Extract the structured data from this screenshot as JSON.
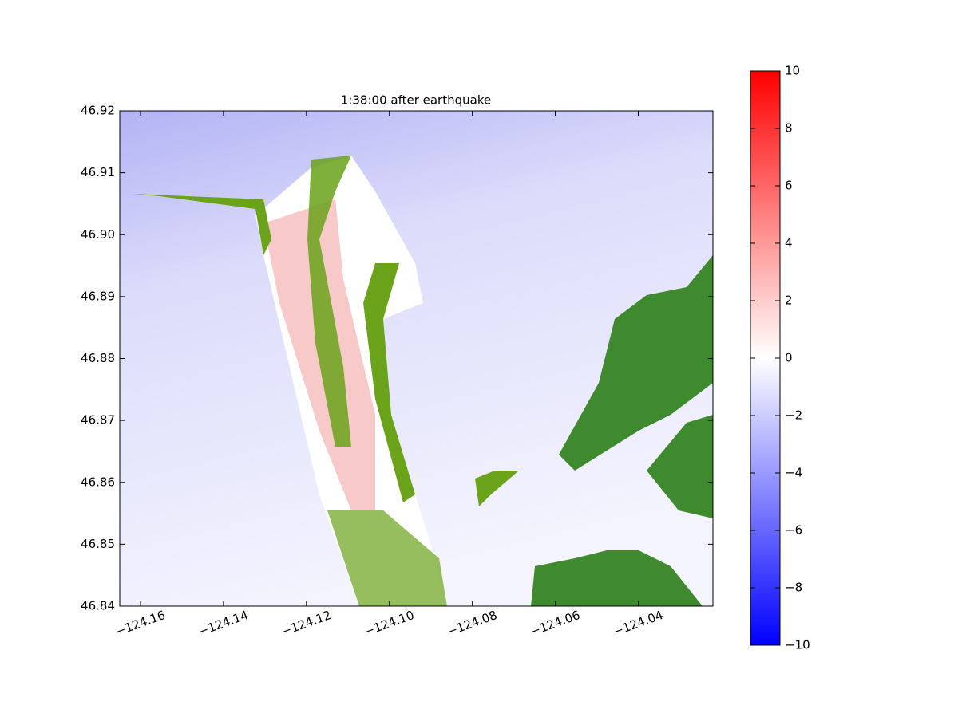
{
  "chart_data": {
    "type": "heatmap",
    "title": "1:38:00 after earthquake",
    "xlim": [
      -124.165,
      -124.022
    ],
    "xticks": [
      {
        "value": -124.16,
        "label": "−124.16"
      },
      {
        "value": -124.14,
        "label": "−124.14"
      },
      {
        "value": -124.12,
        "label": "−124.12"
      },
      {
        "value": -124.1,
        "label": "−124.10"
      },
      {
        "value": -124.08,
        "label": "−124.08"
      },
      {
        "value": -124.06,
        "label": "−124.06"
      },
      {
        "value": -124.04,
        "label": "−124.04"
      }
    ],
    "ylim": [
      46.84,
      46.92
    ],
    "yticks": [
      46.84,
      46.85,
      46.86,
      46.87,
      46.88,
      {
        "value": 46.9,
        "label": "46.90"
      },
      46.89,
      46.91,
      46.92
    ],
    "clim": [
      -10,
      10
    ],
    "cticks": [
      {
        "value": -10,
        "label": "−10"
      },
      {
        "value": -8,
        "label": "−8"
      },
      {
        "value": -6,
        "label": "−6"
      },
      {
        "value": -4,
        "label": "−4"
      },
      {
        "value": -2,
        "label": "−2"
      },
      0,
      2,
      4,
      6,
      8,
      10
    ],
    "colormap": [
      "#0000ff",
      "#ffffff",
      "#ff0000"
    ]
  }
}
